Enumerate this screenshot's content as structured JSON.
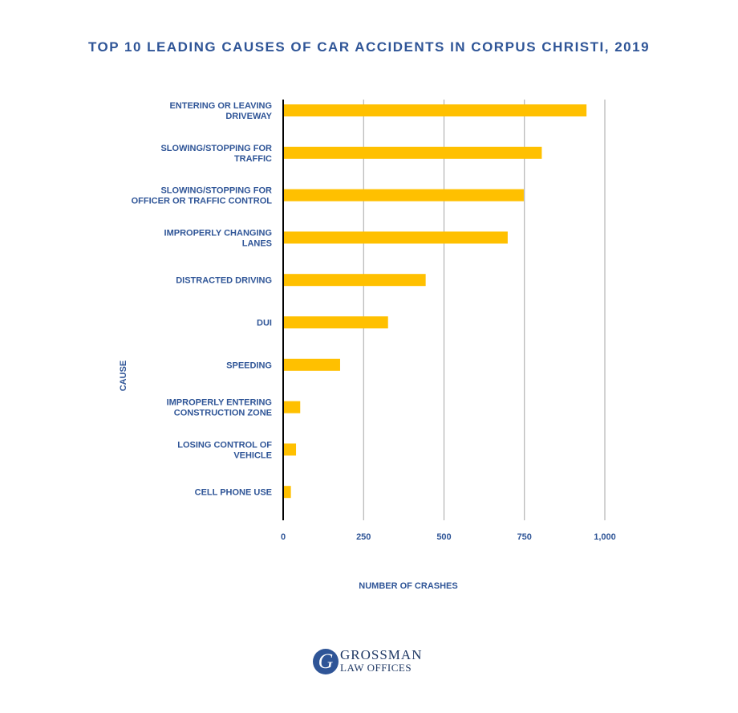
{
  "chart_data": {
    "type": "bar",
    "orientation": "horizontal",
    "title": "TOP 10 LEADING CAUSES OF CAR ACCIDENTS IN CORPUS CHRISTI, 2019",
    "xlabel": "NUMBER OF CRASHES",
    "ylabel": "CAUSE",
    "categories": [
      [
        "ENTERING OR LEAVING",
        "DRIVEWAY"
      ],
      [
        "SLOWING/STOPPING FOR",
        "TRAFFIC"
      ],
      [
        "SLOWING/STOPPING FOR",
        "OFFICER OR TRAFFIC CONTROL"
      ],
      [
        "IMPROPERLY CHANGING",
        "LANES"
      ],
      [
        "DISTRACTED DRIVING"
      ],
      [
        "DUI"
      ],
      [
        "SPEEDING"
      ],
      [
        "IMPROPERLY ENTERING",
        "CONSTRUCTION ZONE"
      ],
      [
        "LOSING CONTROL OF",
        "VEHICLE"
      ],
      [
        "CELL PHONE USE"
      ]
    ],
    "values": [
      943,
      804,
      748,
      698,
      443,
      326,
      177,
      53,
      40,
      24
    ],
    "xlim": [
      0,
      1000
    ],
    "xticks": [
      0,
      250,
      500,
      750,
      1000
    ],
    "xtick_labels": [
      "0",
      "250",
      "500",
      "750",
      "1,000"
    ],
    "grid": true,
    "bar_color": "#ffc000",
    "text_color": "#2f5597"
  },
  "logo": {
    "mark": "G",
    "line1": "GROSSMAN",
    "line2": "LAW OFFICES"
  }
}
